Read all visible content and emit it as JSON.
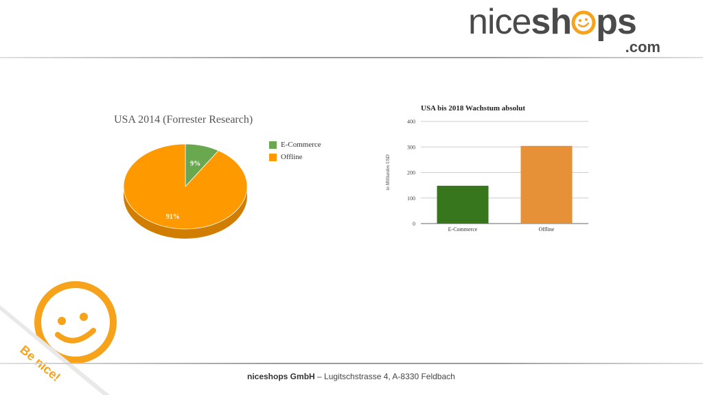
{
  "logo": {
    "part1": "nice",
    "part2": "sh",
    "part3": "ps",
    "dotcom": ".com",
    "accent": "#f7a21b",
    "text_color": "#4a4a4a"
  },
  "corner_badge": {
    "text": "Be nice!",
    "icon": "smiley-icon",
    "color": "#f7a21b"
  },
  "footer": {
    "company": "niceshops GmbH",
    "address": " – Lugitschstrasse 4, A-8330 Feldbach"
  },
  "chart_data": [
    {
      "type": "pie",
      "title": "USA 2014 (Forrester Research)",
      "categories": [
        "E-Commerce",
        "Offline"
      ],
      "values": [
        9,
        91
      ],
      "labels": [
        "9%",
        "91%"
      ],
      "colors": [
        "#6aa84f",
        "#ff9900"
      ],
      "legend": "right"
    },
    {
      "type": "bar",
      "title": "USA bis 2018 Wachstum absolut",
      "categories": [
        "E-Commerce",
        "Offline"
      ],
      "values": [
        148,
        304
      ],
      "colors": [
        "#38761d",
        "#e69138"
      ],
      "ylabel": "in Milliarden USD",
      "xlabel": "",
      "ylim": [
        0,
        400
      ],
      "yticks": [
        "0",
        "100",
        "200",
        "300",
        "400"
      ],
      "grid": true
    }
  ]
}
